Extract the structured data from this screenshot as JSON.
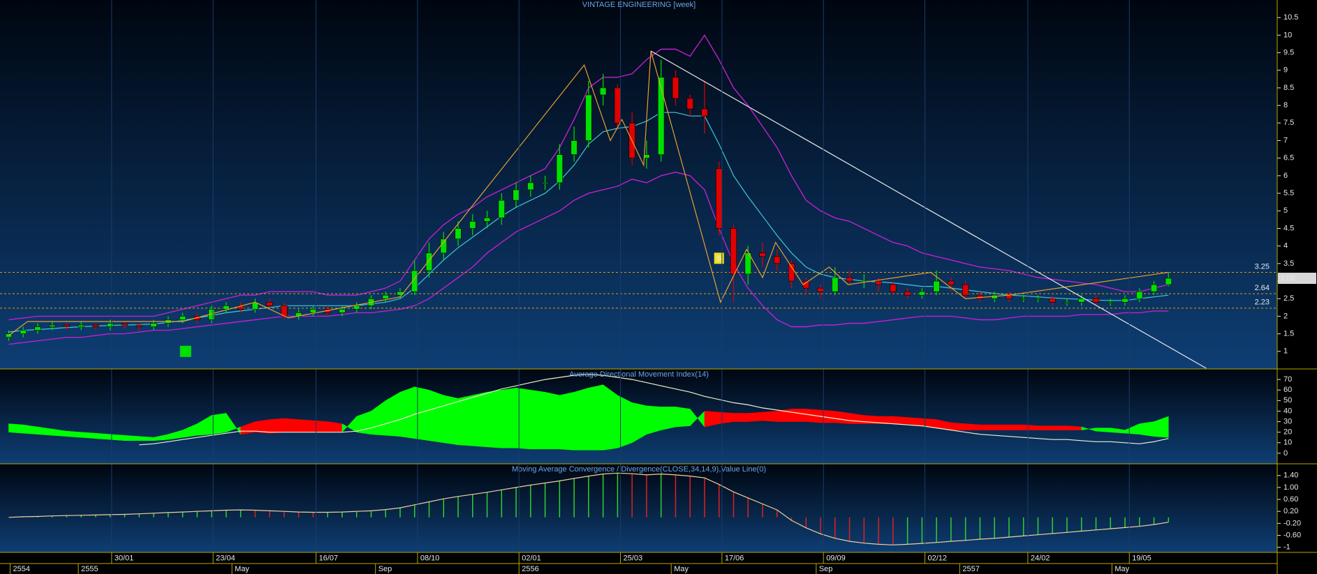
{
  "chart_data": {
    "type": "candlestick",
    "title": "VINTAGE ENGINEERING [week]",
    "open": [
      1.4,
      1.5,
      1.6,
      1.7,
      1.75,
      1.7,
      1.75,
      1.7,
      1.8,
      1.75,
      1.7,
      1.8,
      1.9,
      2.0,
      1.9,
      2.2,
      2.3,
      2.2,
      2.4,
      2.3,
      2.0,
      2.1,
      2.2,
      2.1,
      2.2,
      2.3,
      2.5,
      2.6,
      2.7,
      3.3,
      3.8,
      4.2,
      4.5,
      4.7,
      4.8,
      5.3,
      5.6,
      5.8,
      5.8,
      6.6,
      7.0,
      8.3,
      8.5,
      7.5,
      6.5,
      6.6,
      8.8,
      8.2,
      7.9,
      6.2,
      4.5,
      3.2,
      3.8,
      3.7,
      3.5,
      3.0,
      2.8,
      2.7,
      3.1,
      3.0,
      3.0,
      2.9,
      2.7,
      2.6,
      2.7,
      3.0,
      2.9,
      2.6,
      2.5,
      2.6,
      2.5,
      2.5,
      2.5,
      2.4,
      2.4,
      2.5,
      2.4,
      2.4,
      2.5,
      2.7,
      2.9
    ],
    "high": [
      1.6,
      1.7,
      1.8,
      1.85,
      1.8,
      1.85,
      1.8,
      1.9,
      1.85,
      1.8,
      1.9,
      2.0,
      2.1,
      2.1,
      2.3,
      2.4,
      2.4,
      2.5,
      2.5,
      2.4,
      2.2,
      2.3,
      2.3,
      2.3,
      2.4,
      2.6,
      2.7,
      2.8,
      3.6,
      4.1,
      4.4,
      4.7,
      4.9,
      5.0,
      5.5,
      5.8,
      6.0,
      6.0,
      6.9,
      7.4,
      8.7,
      8.9,
      8.6,
      7.8,
      7.0,
      9.3,
      9.0,
      8.3,
      8.7,
      6.4,
      4.6,
      4.0,
      4.1,
      3.9,
      3.6,
      3.1,
      2.9,
      3.4,
      3.3,
      3.2,
      3.1,
      3.0,
      2.8,
      2.8,
      3.3,
      3.1,
      3.0,
      2.7,
      2.7,
      2.7,
      2.6,
      2.6,
      2.6,
      2.5,
      2.6,
      2.6,
      2.5,
      2.6,
      2.8,
      3.0,
      3.25
    ],
    "low": [
      1.3,
      1.4,
      1.5,
      1.6,
      1.6,
      1.6,
      1.6,
      1.6,
      1.65,
      1.6,
      1.6,
      1.7,
      1.8,
      1.8,
      1.8,
      2.1,
      2.1,
      2.1,
      2.2,
      1.9,
      1.9,
      2.0,
      2.0,
      2.0,
      2.1,
      2.2,
      2.4,
      2.5,
      2.6,
      3.1,
      3.6,
      4.0,
      4.3,
      4.5,
      4.6,
      5.1,
      5.4,
      5.6,
      5.6,
      6.4,
      6.8,
      8.0,
      7.3,
      6.3,
      6.2,
      6.4,
      8.0,
      7.7,
      7.2,
      4.3,
      2.4,
      2.9,
      3.4,
      3.3,
      2.8,
      2.6,
      2.5,
      2.6,
      2.9,
      2.8,
      2.7,
      2.6,
      2.5,
      2.5,
      2.6,
      2.7,
      2.5,
      2.4,
      2.4,
      2.4,
      2.4,
      2.4,
      2.3,
      2.3,
      2.3,
      2.3,
      2.3,
      2.3,
      2.4,
      2.6,
      2.85
    ],
    "close": [
      1.5,
      1.6,
      1.7,
      1.75,
      1.7,
      1.75,
      1.7,
      1.8,
      1.75,
      1.7,
      1.8,
      1.9,
      2.0,
      1.9,
      2.2,
      2.3,
      2.2,
      2.4,
      2.3,
      2.0,
      2.1,
      2.2,
      2.1,
      2.2,
      2.3,
      2.5,
      2.6,
      2.7,
      3.3,
      3.8,
      4.2,
      4.5,
      4.7,
      4.8,
      5.3,
      5.6,
      5.8,
      5.8,
      6.6,
      7.0,
      8.3,
      8.5,
      7.5,
      6.5,
      6.6,
      8.8,
      8.2,
      7.9,
      7.7,
      4.5,
      3.2,
      3.8,
      3.7,
      3.5,
      3.0,
      2.8,
      2.7,
      3.1,
      3.0,
      3.0,
      2.9,
      2.7,
      2.6,
      2.7,
      3.0,
      2.9,
      2.6,
      2.5,
      2.6,
      2.5,
      2.5,
      2.5,
      2.4,
      2.4,
      2.5,
      2.4,
      2.4,
      2.5,
      2.7,
      2.9,
      3.08
    ],
    "up_color": "#00e000",
    "down_color": "#e00000",
    "xlim": [
      -0.6,
      87.5
    ],
    "ylim": [
      0.5,
      11
    ],
    "yticks": [
      1,
      1.5,
      2,
      2.5,
      3,
      3.5,
      4,
      4.5,
      5,
      5.5,
      6,
      6.5,
      7,
      7.5,
      8,
      8.5,
      9,
      9.5,
      10,
      10.5
    ],
    "bands": {
      "color": "#c020d0",
      "upper": [
        1.9,
        1.95,
        2.0,
        2.0,
        2.0,
        2.0,
        2.0,
        2.0,
        2.0,
        2.0,
        2.0,
        2.1,
        2.2,
        2.3,
        2.4,
        2.5,
        2.6,
        2.6,
        2.7,
        2.7,
        2.7,
        2.7,
        2.6,
        2.6,
        2.6,
        2.7,
        2.8,
        3.0,
        3.6,
        4.2,
        4.6,
        4.9,
        5.1,
        5.4,
        5.6,
        5.8,
        6.0,
        6.2,
        6.8,
        7.6,
        8.5,
        8.8,
        8.8,
        8.9,
        9.3,
        9.6,
        9.6,
        9.4,
        10.0,
        9.3,
        8.5,
        8.0,
        7.4,
        6.8,
        6.0,
        5.3,
        5.0,
        4.8,
        4.7,
        4.5,
        4.3,
        4.1,
        4.0,
        3.8,
        3.7,
        3.6,
        3.5,
        3.4,
        3.35,
        3.3,
        3.2,
        3.1,
        3.05,
        3.0,
        2.95,
        2.9,
        2.8,
        2.7,
        2.7,
        2.8,
        2.9
      ],
      "lower": [
        1.2,
        1.25,
        1.3,
        1.35,
        1.4,
        1.4,
        1.45,
        1.5,
        1.5,
        1.55,
        1.6,
        1.6,
        1.65,
        1.7,
        1.75,
        1.8,
        1.85,
        1.9,
        1.95,
        2.0,
        2.0,
        2.0,
        2.0,
        2.05,
        2.1,
        2.1,
        2.15,
        2.2,
        2.3,
        2.5,
        2.8,
        3.1,
        3.4,
        3.8,
        4.1,
        4.4,
        4.6,
        4.8,
        5.0,
        5.3,
        5.5,
        5.6,
        5.7,
        5.9,
        5.8,
        6.0,
        6.1,
        6.0,
        5.6,
        4.5,
        3.5,
        2.8,
        2.3,
        1.9,
        1.7,
        1.7,
        1.75,
        1.75,
        1.8,
        1.8,
        1.85,
        1.9,
        1.95,
        2.0,
        2.0,
        2.0,
        1.95,
        1.9,
        1.9,
        1.95,
        2.0,
        2.0,
        2.0,
        2.0,
        2.05,
        2.05,
        2.05,
        2.1,
        2.1,
        2.15,
        2.15
      ]
    },
    "ma": {
      "color": "#40c8d8",
      "values": [
        1.55,
        1.6,
        1.62,
        1.65,
        1.68,
        1.7,
        1.72,
        1.74,
        1.75,
        1.76,
        1.78,
        1.82,
        1.88,
        1.95,
        2.02,
        2.1,
        2.15,
        2.2,
        2.25,
        2.3,
        2.3,
        2.3,
        2.3,
        2.3,
        2.3,
        2.35,
        2.4,
        2.5,
        2.8,
        3.2,
        3.6,
        3.95,
        4.25,
        4.55,
        4.85,
        5.1,
        5.3,
        5.5,
        5.85,
        6.3,
        6.9,
        7.25,
        7.35,
        7.4,
        7.55,
        7.8,
        7.8,
        7.7,
        7.7,
        6.9,
        6.0,
        5.4,
        4.85,
        4.3,
        3.8,
        3.4,
        3.2,
        3.1,
        3.05,
        3.0,
        2.98,
        2.95,
        2.9,
        2.85,
        2.85,
        2.8,
        2.75,
        2.7,
        2.65,
        2.6,
        2.58,
        2.55,
        2.52,
        2.5,
        2.48,
        2.46,
        2.45,
        2.45,
        2.5,
        2.55,
        2.6
      ]
    },
    "zigzag": {
      "color": "#e8a030",
      "x": [
        0,
        1.3,
        12,
        17,
        19.3,
        27,
        39.7,
        41.5,
        42.3,
        43.8,
        44.3,
        49.1,
        50.9,
        52,
        52.9,
        54.8,
        56.6,
        57.9,
        63.6,
        66,
        69,
        80
      ],
      "y": [
        1.45,
        1.85,
        1.85,
        2.4,
        1.95,
        2.55,
        9.15,
        7,
        7.6,
        6.3,
        9.55,
        2.4,
        3.9,
        3.1,
        4.1,
        2.9,
        3.4,
        2.9,
        3.25,
        2.5,
        2.6,
        3.25
      ]
    },
    "trendline": {
      "color": "#e8e8e8",
      "x": [
        44.3,
        82.6
      ],
      "y": [
        9.55,
        0.52
      ]
    },
    "levels": [
      3.25,
      2.64,
      2.23
    ],
    "level_color": "#e0a000",
    "last_price": 3.08,
    "annotations": [
      {
        "text": "S",
        "x": 49,
        "y": 3.65
      }
    ],
    "buy_marker": {
      "x": 12.2,
      "y": 1.0,
      "color": "#00e000"
    },
    "grid": true,
    "xticks": [
      {
        "value": 7.1,
        "label": "30/01"
      },
      {
        "value": 14.1,
        "label": "23/04"
      },
      {
        "value": 21.2,
        "label": "16/07"
      },
      {
        "value": 28.2,
        "label": "08/10"
      },
      {
        "value": 35.2,
        "label": "02/01"
      },
      {
        "value": 42.2,
        "label": "25/03"
      },
      {
        "value": 49.2,
        "label": "17/06"
      },
      {
        "value": 56.2,
        "label": "09/09"
      },
      {
        "value": 63.2,
        "label": "02/12"
      },
      {
        "value": 70.3,
        "label": "24/02"
      },
      {
        "value": 77.3,
        "label": "19/05"
      }
    ],
    "period_ticks": [
      {
        "value": 0.1,
        "label": "2554"
      },
      {
        "value": 4.8,
        "label": "2555"
      },
      {
        "value": 15.4,
        "label": "May"
      },
      {
        "value": 25.3,
        "label": "Sep"
      },
      {
        "value": 35.2,
        "label": "2556"
      },
      {
        "value": 45.7,
        "label": "May"
      },
      {
        "value": 55.7,
        "label": "Sep"
      },
      {
        "value": 65.6,
        "label": "2557"
      },
      {
        "value": 76.1,
        "label": "May"
      }
    ],
    "indicators": [
      {
        "type": "adx",
        "title": "Average Directional Movement Index(14)",
        "plus_color": "#00ff00",
        "minus_color": "#ff0000",
        "adx_color": "#f0f0d0",
        "ylim": [
          -10,
          80
        ],
        "yticks": [
          0,
          10,
          20,
          30,
          40,
          50,
          60,
          70
        ],
        "di_plus": [
          28,
          27,
          25,
          23,
          21,
          20,
          19,
          18,
          17,
          16,
          15,
          18,
          22,
          28,
          36,
          38,
          18,
          20,
          19,
          20,
          20,
          20,
          20,
          20,
          35,
          40,
          50,
          58,
          63,
          60,
          55,
          52,
          55,
          58,
          60,
          62,
          60,
          58,
          55,
          58,
          62,
          65,
          55,
          48,
          45,
          44,
          44,
          42,
          25,
          28,
          30,
          30,
          31,
          30,
          30,
          30,
          29,
          29,
          28,
          28,
          28,
          28,
          28,
          26,
          24,
          22,
          22,
          22,
          22,
          22,
          22,
          22,
          22,
          22,
          22,
          24,
          24,
          22,
          28,
          30,
          35
        ],
        "di_minus": [
          20,
          19,
          18,
          17,
          16,
          15,
          14,
          13,
          12,
          12,
          12,
          13,
          15,
          17,
          18,
          20,
          25,
          30,
          32,
          33,
          32,
          31,
          30,
          28,
          20,
          18,
          17,
          16,
          14,
          12,
          10,
          8,
          7,
          6,
          5,
          5,
          4,
          4,
          4,
          3,
          3,
          3,
          5,
          10,
          18,
          22,
          25,
          26,
          40,
          39,
          38,
          38,
          39,
          40,
          42,
          42,
          41,
          40,
          38,
          36,
          35,
          35,
          34,
          33,
          32,
          29,
          28,
          27,
          27,
          27,
          27,
          26,
          26,
          26,
          25,
          21,
          20,
          19,
          18,
          16,
          15
        ],
        "adx": [
          null,
          null,
          null,
          null,
          null,
          null,
          null,
          null,
          null,
          8,
          9,
          11,
          13,
          15,
          17,
          19,
          21,
          21,
          20,
          20,
          20,
          20,
          20,
          20,
          21,
          24,
          28,
          32,
          37,
          41,
          45,
          49,
          53,
          57,
          61,
          64,
          67,
          70,
          72,
          74,
          75,
          74,
          72,
          70,
          67,
          64,
          61,
          58,
          54,
          51,
          48,
          46,
          43,
          41,
          39,
          37,
          35,
          33,
          31,
          30,
          29,
          28,
          27,
          26,
          24,
          22,
          20,
          18,
          17,
          16,
          15,
          14,
          13,
          13,
          12,
          11,
          11,
          10,
          9,
          11,
          14
        ]
      },
      {
        "type": "macd",
        "title": "Moving Average Convergence / Divergence(CLOSE,34,14,9),Value Line(0)",
        "up_color": "#30d030",
        "down_color": "#e02020",
        "line_color": "#f0d0a0",
        "ylim": [
          -1.17,
          1.79
        ],
        "yticks": [
          {
            "value": 1.4,
            "label": "1.40"
          },
          {
            "value": 1,
            "label": "1.00"
          },
          {
            "value": 0.6,
            "label": "0.60"
          },
          {
            "value": 0.2,
            "label": "0.20"
          },
          {
            "value": -0.2,
            "label": "-0.20"
          },
          {
            "value": -0.6,
            "label": "-0.60"
          },
          -1
        ],
        "values": [
          0,
          0.02,
          0.03,
          0.05,
          0.06,
          0.07,
          0.08,
          0.09,
          0.1,
          0.12,
          0.14,
          0.16,
          0.18,
          0.2,
          0.22,
          0.24,
          0.25,
          0.24,
          0.22,
          0.2,
          0.18,
          0.17,
          0.17,
          0.18,
          0.2,
          0.22,
          0.26,
          0.32,
          0.42,
          0.52,
          0.62,
          0.7,
          0.77,
          0.84,
          0.92,
          1.0,
          1.08,
          1.15,
          1.22,
          1.3,
          1.38,
          1.45,
          1.48,
          1.46,
          1.42,
          1.45,
          1.42,
          1.38,
          1.32,
          1.1,
          0.85,
          0.65,
          0.45,
          0.25,
          -0.1,
          -0.35,
          -0.55,
          -0.7,
          -0.8,
          -0.86,
          -0.9,
          -0.92,
          -0.9,
          -0.87,
          -0.84,
          -0.8,
          -0.77,
          -0.73,
          -0.7,
          -0.66,
          -0.62,
          -0.58,
          -0.54,
          -0.5,
          -0.46,
          -0.42,
          -0.38,
          -0.34,
          -0.3,
          -0.24,
          -0.16
        ]
      }
    ]
  }
}
